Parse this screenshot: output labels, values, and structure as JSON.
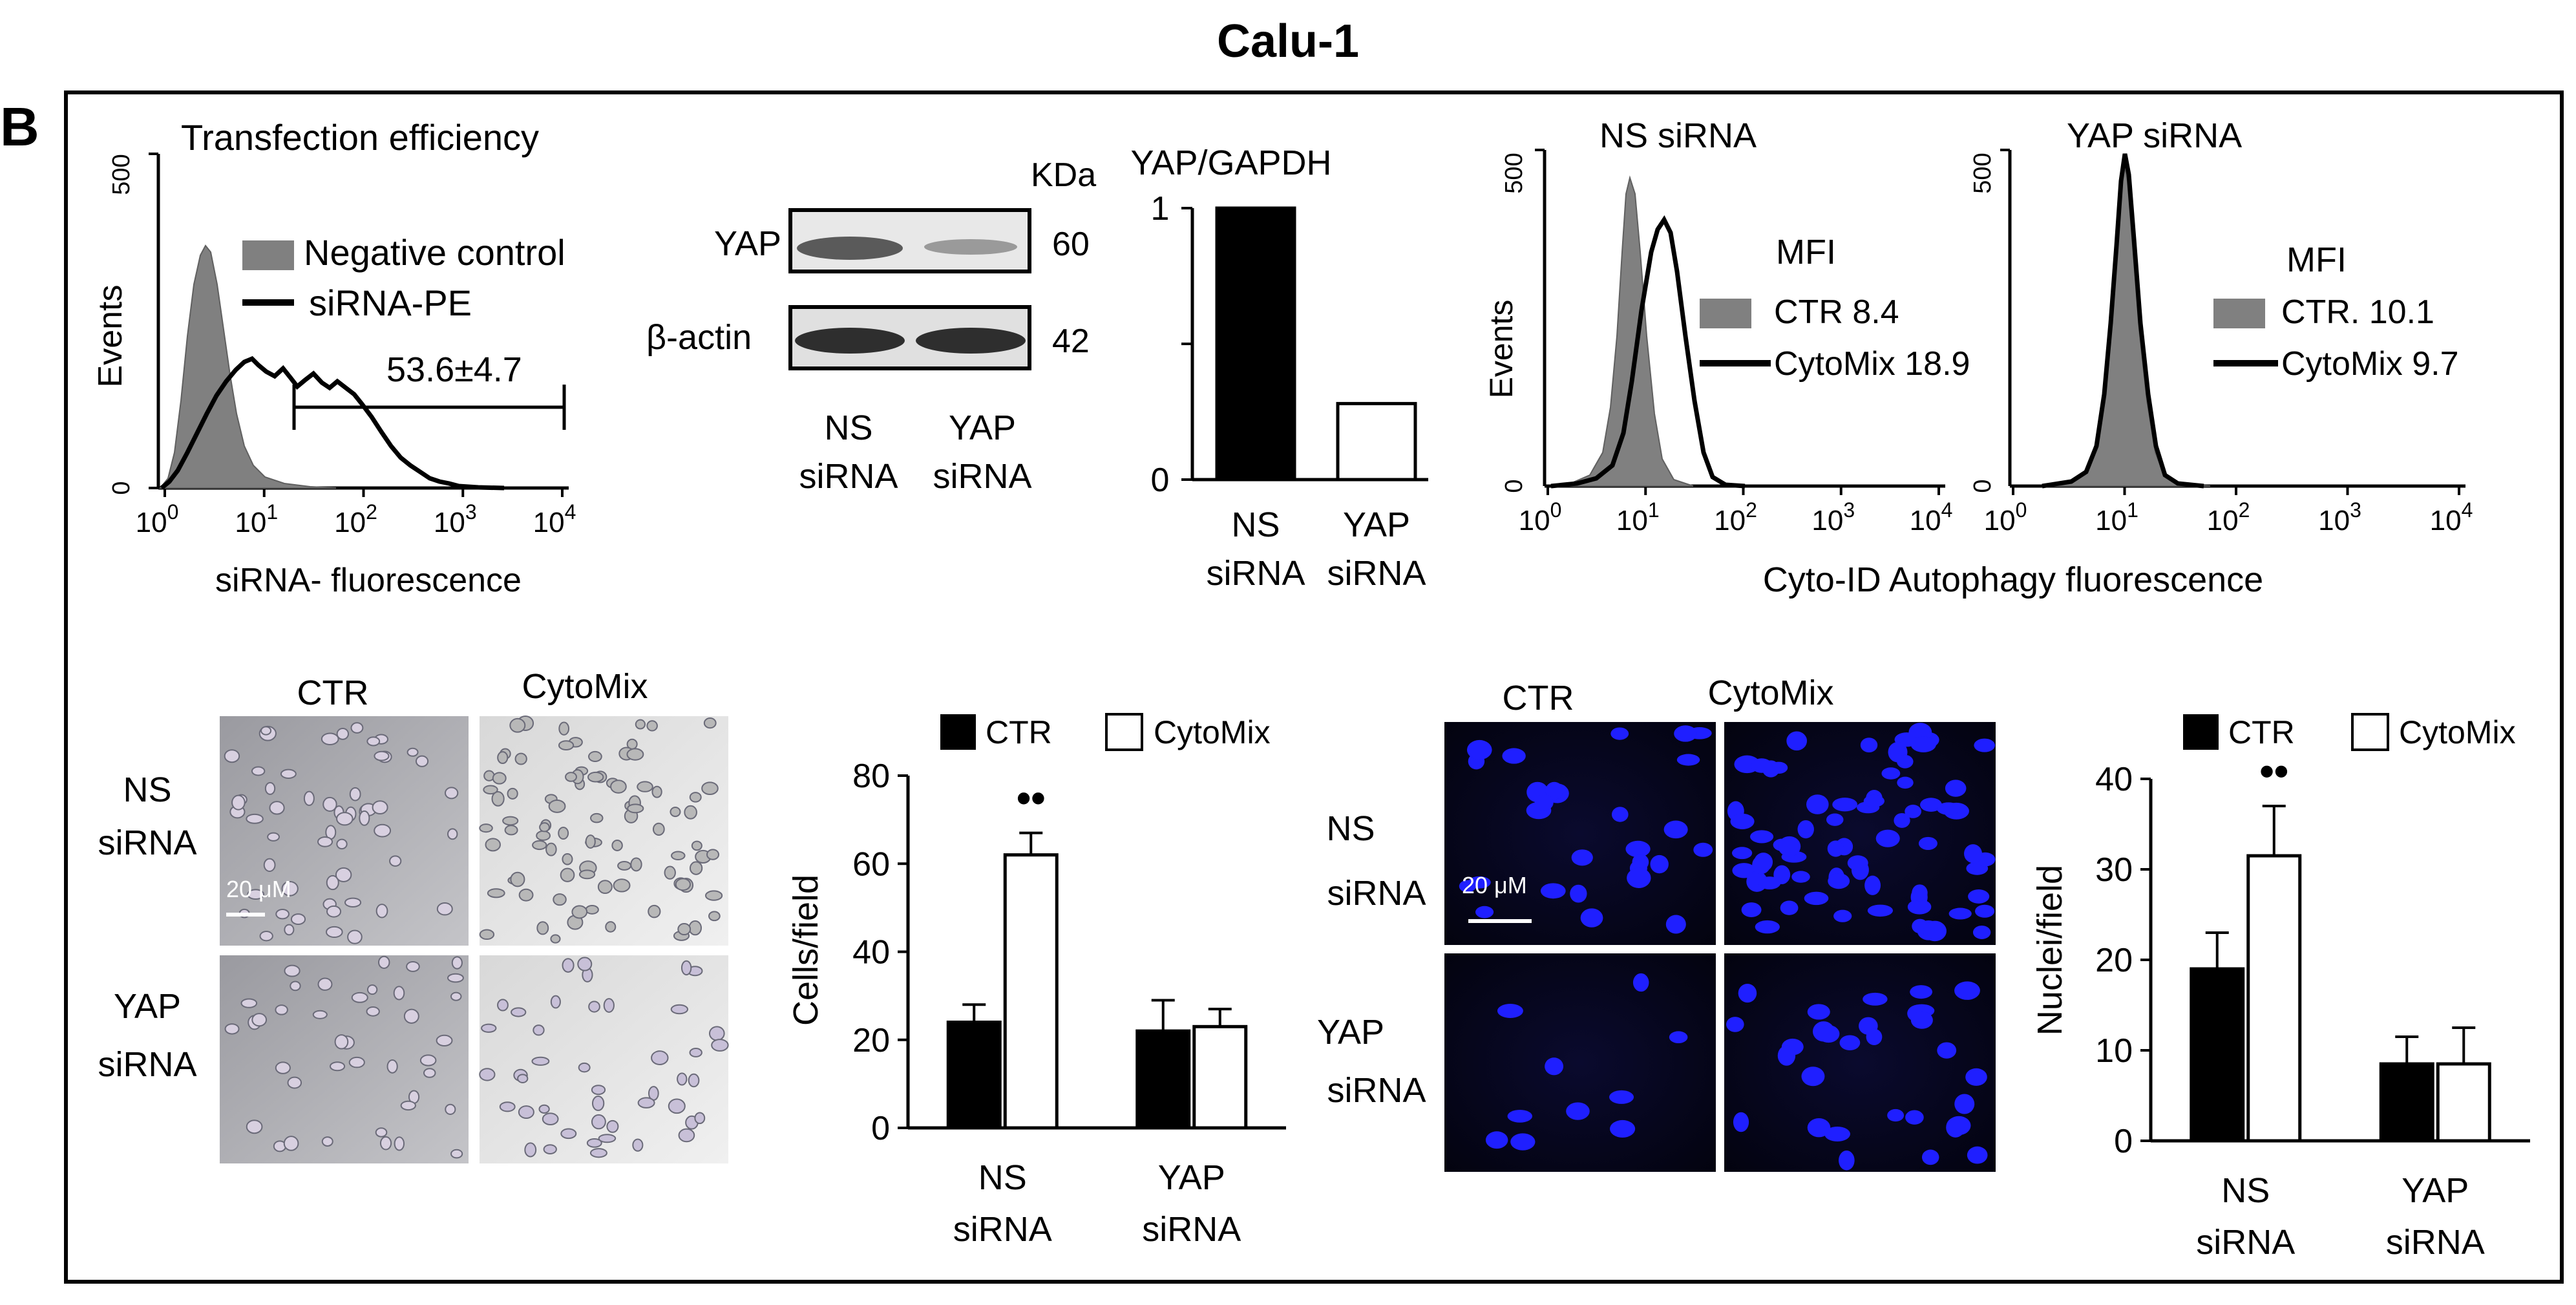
{
  "title": "Calu-1",
  "panel_label": "B",
  "transfection": {
    "title": "Transfection efficiency",
    "ylabel": "Events",
    "xlabel": "siRNA- fluorescence",
    "ytick_max": "500",
    "ytick_min": "0",
    "xticks": [
      {
        "b": "10",
        "e": "0"
      },
      {
        "b": "10",
        "e": "1"
      },
      {
        "b": "10",
        "e": "2"
      },
      {
        "b": "10",
        "e": "3"
      },
      {
        "b": "10",
        "e": "4"
      }
    ],
    "legend": [
      "Negative control",
      "siRNA-PE"
    ],
    "gate_label": "53.6±4.7"
  },
  "western": {
    "kda_label": "KDa",
    "rows": [
      {
        "label": "YAP",
        "kda": "60"
      },
      {
        "label": "β-actin",
        "kda": "42"
      }
    ],
    "lanes": [
      {
        "line1": "NS",
        "line2": "siRNA"
      },
      {
        "line1": "YAP",
        "line2": "siRNA"
      }
    ]
  },
  "ratio_chart": {
    "title": "YAP/GAPDH",
    "yticks": [
      "1",
      "0"
    ],
    "categories": [
      {
        "line1": "NS",
        "line2": "siRNA"
      },
      {
        "line1": "YAP",
        "line2": "siRNA"
      }
    ]
  },
  "cyto_id": {
    "shared_xlabel": "Cyto-ID Autophagy fluorescence",
    "ylabel": "Events",
    "panels": [
      {
        "title": "NS siRNA",
        "mfi_label": "MFI",
        "ytick_max": "500",
        "ytick_min": "0",
        "legend": [
          "CTR 8.4",
          "CytoMix 18.9"
        ]
      },
      {
        "title": "YAP siRNA",
        "mfi_label": "MFI",
        "ytick_max": "500",
        "ytick_min": "0",
        "legend": [
          "CTR. 10.1",
          "CytoMix  9.7"
        ]
      }
    ],
    "xticks": [
      {
        "b": "10",
        "e": "0"
      },
      {
        "b": "10",
        "e": "1"
      },
      {
        "b": "10",
        "e": "2"
      },
      {
        "b": "10",
        "e": "3"
      },
      {
        "b": "10",
        "e": "4"
      }
    ]
  },
  "brightfield": {
    "col_labels": [
      "CTR",
      "CytoMix"
    ],
    "row_labels": [
      {
        "line1": "NS",
        "line2": "siRNA"
      },
      {
        "line1": "YAP",
        "line2": "siRNA"
      }
    ],
    "scale_label": "20 μM"
  },
  "fluorescence": {
    "col_labels": [
      "CTR",
      "CytoMix"
    ],
    "row_labels": [
      {
        "line1": "NS",
        "line2": "siRNA"
      },
      {
        "line1": "YAP",
        "line2": "siRNA"
      }
    ],
    "scale_label": "20 μM"
  },
  "colors": {
    "ctr": "#000000",
    "cytomix": "#ffffff",
    "histogram_fill": "#808080",
    "nuclei": "#1f1fff",
    "fluor_bg": "#050520"
  },
  "chart_data": [
    {
      "type": "bar",
      "title": "YAP/GAPDH",
      "categories": [
        "NS siRNA",
        "YAP siRNA"
      ],
      "values": [
        1.0,
        0.28
      ],
      "ylim": [
        0,
        1
      ]
    },
    {
      "type": "bar",
      "ylabel": "Cells/field",
      "ylim": [
        0,
        80
      ],
      "yticks": [
        0,
        20,
        40,
        60,
        80
      ],
      "categories": [
        {
          "line1": "NS",
          "line2": "siRNA"
        },
        {
          "line1": "YAP",
          "line2": "siRNA"
        }
      ],
      "series": [
        {
          "name": "CTR",
          "values": [
            24,
            22
          ],
          "errors": [
            4,
            7
          ],
          "color": "#000000"
        },
        {
          "name": "CytoMix",
          "values": [
            62,
            23
          ],
          "errors": [
            5,
            4
          ],
          "color": "#ffffff"
        }
      ],
      "significance": [
        {
          "category": 0,
          "series": 1,
          "marker": "••"
        }
      ],
      "legend": "top"
    },
    {
      "type": "bar",
      "ylabel": "Nuclei/field",
      "ylim": [
        0,
        40
      ],
      "yticks": [
        0,
        10,
        20,
        30,
        40
      ],
      "categories": [
        {
          "line1": "NS",
          "line2": "siRNA"
        },
        {
          "line1": "YAP",
          "line2": "siRNA"
        }
      ],
      "series": [
        {
          "name": "CTR",
          "values": [
            19,
            8.5
          ],
          "errors": [
            4,
            3
          ],
          "color": "#000000"
        },
        {
          "name": "CytoMix",
          "values": [
            31.5,
            8.5
          ],
          "errors": [
            5.5,
            4
          ],
          "color": "#ffffff"
        }
      ],
      "significance": [
        {
          "category": 0,
          "series": 1,
          "marker": "••"
        }
      ],
      "legend": "top"
    }
  ]
}
